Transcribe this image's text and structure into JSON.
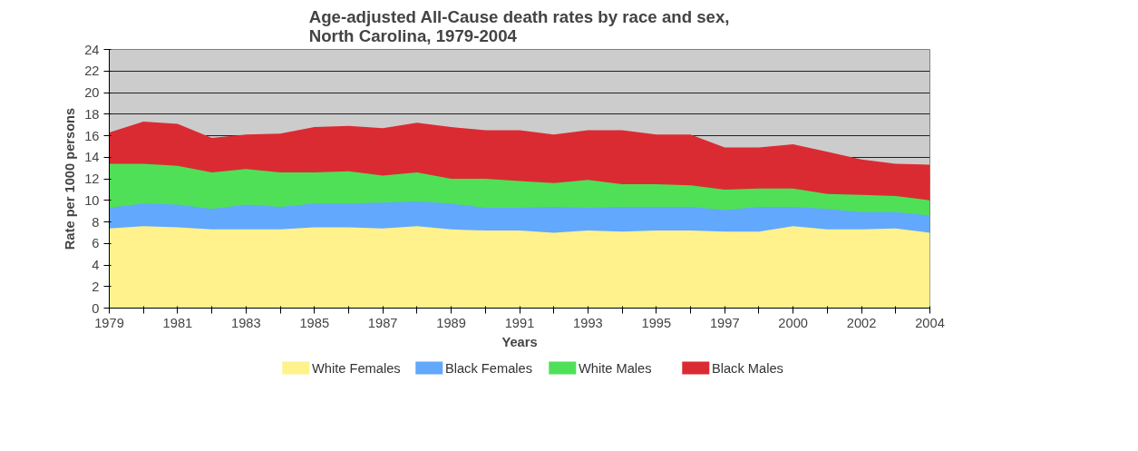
{
  "chart_data": {
    "type": "area",
    "title": "Age-adjusted All-Cause death rates by race and sex,\nNorth Carolina, 1979-2004",
    "xlabel": "Years",
    "ylabel": "Rate per 1000 persons",
    "categories": [
      "1979",
      null,
      "1981",
      null,
      "1983",
      null,
      "1985",
      null,
      "1987",
      null,
      "1989",
      null,
      "1991",
      null,
      "1993",
      null,
      "1995",
      null,
      "1997",
      null,
      "2000",
      null,
      "2002",
      null,
      "2004"
    ],
    "series": [
      {
        "name": "White Females",
        "color": "#fff18c",
        "values": [
          7.4,
          7.6,
          7.5,
          7.3,
          7.3,
          7.3,
          7.5,
          7.5,
          7.4,
          7.6,
          7.3,
          7.2,
          7.2,
          7.0,
          7.2,
          7.1,
          7.2,
          7.2,
          7.1,
          7.1,
          7.6,
          7.3,
          7.3,
          7.4,
          7.0
        ]
      },
      {
        "name": "Black Females",
        "color": "#62a8fd",
        "values": [
          9.3,
          9.7,
          9.6,
          9.2,
          9.6,
          9.4,
          9.7,
          9.7,
          9.8,
          9.9,
          9.7,
          9.3,
          9.3,
          9.4,
          9.3,
          9.4,
          9.4,
          9.4,
          9.1,
          9.4,
          9.4,
          9.2,
          8.9,
          8.9,
          8.6
        ]
      },
      {
        "name": "White Males",
        "color": "#4fe058",
        "values": [
          13.4,
          13.4,
          13.2,
          12.6,
          12.9,
          12.6,
          12.6,
          12.7,
          12.3,
          12.6,
          12.0,
          12.0,
          11.8,
          11.6,
          11.9,
          11.5,
          11.5,
          11.4,
          11.0,
          11.1,
          11.1,
          10.6,
          10.5,
          10.4,
          10.0
        ]
      },
      {
        "name": "Black Males",
        "color": "#db2b32",
        "values": [
          16.3,
          17.3,
          17.1,
          15.8,
          16.1,
          16.2,
          16.8,
          16.9,
          16.7,
          17.2,
          16.8,
          16.5,
          16.5,
          16.1,
          16.5,
          16.5,
          16.1,
          16.1,
          14.9,
          14.9,
          15.2,
          14.5,
          13.8,
          13.4,
          13.3
        ]
      }
    ],
    "ylim": [
      0,
      24
    ],
    "yticks": [
      0,
      2,
      4,
      6,
      8,
      10,
      12,
      14,
      16,
      18,
      20,
      22,
      24
    ],
    "grid": "y",
    "legend": "bottom"
  }
}
